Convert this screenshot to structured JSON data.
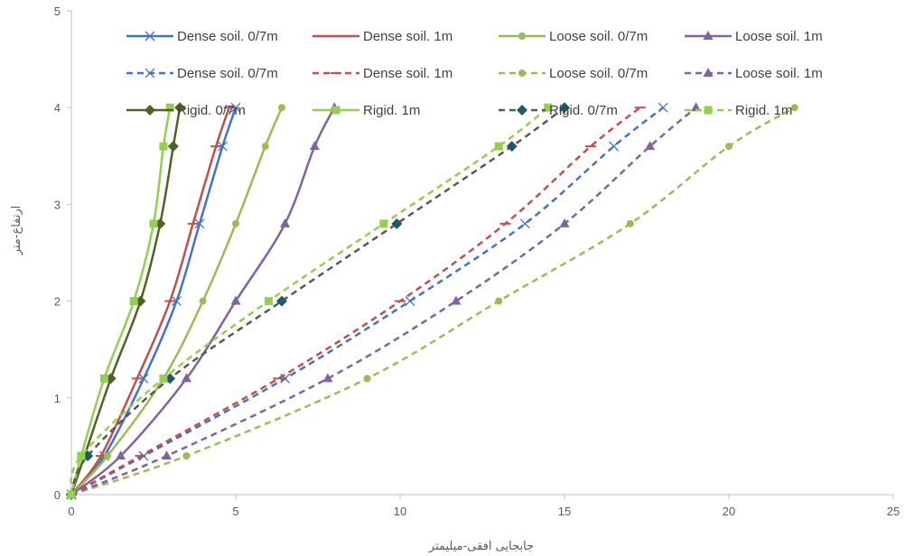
{
  "chart_data": {
    "type": "line",
    "title": "",
    "xlabel": "جابجایی افقی-میلیمتر",
    "ylabel": "ارتفاع-متر",
    "xlim": [
      0,
      25
    ],
    "ylim": [
      0,
      5
    ],
    "x_ticks": [
      0,
      5,
      10,
      15,
      20,
      25
    ],
    "y_ticks": [
      0,
      1,
      2,
      3,
      4,
      5
    ],
    "grid": false,
    "legend_position": "top",
    "legend_columns": 4,
    "series": [
      {
        "name": "Dense soil. 0/7m",
        "color": "#4472C4",
        "dash": "solid",
        "marker": "x",
        "x": [
          0,
          1,
          2.2,
          3.2,
          3.9,
          4.6,
          5.0
        ],
        "y": [
          0,
          0.4,
          1.2,
          2.0,
          2.8,
          3.6,
          4.0
        ]
      },
      {
        "name": "Dense soil. 1m",
        "color": "#C0504D",
        "dash": "solid",
        "marker": "dash",
        "x": [
          0,
          0.9,
          2.0,
          3.0,
          3.7,
          4.4,
          4.8
        ],
        "y": [
          0,
          0.4,
          1.2,
          2.0,
          2.8,
          3.6,
          4.0
        ]
      },
      {
        "name": "Loose soil. 0/7m",
        "color": "#9BBB59",
        "dash": "solid",
        "marker": "circle",
        "x": [
          0,
          1.1,
          2.8,
          4.0,
          5.0,
          5.9,
          6.4
        ],
        "y": [
          0,
          0.4,
          1.2,
          2.0,
          2.8,
          3.6,
          4.0
        ]
      },
      {
        "name": "Loose soil. 1m",
        "color": "#8064A2",
        "dash": "solid",
        "marker": "triangle",
        "x": [
          0,
          1.5,
          3.5,
          5.0,
          6.5,
          7.4,
          8.0
        ],
        "y": [
          0,
          0.4,
          1.2,
          2.0,
          2.8,
          3.6,
          4.0
        ]
      },
      {
        "name": "Dense soil. 0/7m",
        "color": "#4472C4",
        "dash": "dashed",
        "marker": "x",
        "x": [
          0,
          2.2,
          6.5,
          10.3,
          13.8,
          16.5,
          18.0
        ],
        "y": [
          0,
          0.4,
          1.2,
          2.0,
          2.8,
          3.6,
          4.0
        ]
      },
      {
        "name": "Dense soil. 1m",
        "color": "#C0504D",
        "dash": "dashed",
        "marker": "dash",
        "x": [
          0,
          2.1,
          6.3,
          10.0,
          13.2,
          15.8,
          17.3
        ],
        "y": [
          0,
          0.4,
          1.2,
          2.0,
          2.8,
          3.6,
          4.0
        ]
      },
      {
        "name": "Loose soil. 0/7m",
        "color": "#9BBB59",
        "dash": "dashed",
        "marker": "circle",
        "x": [
          0,
          3.5,
          9.0,
          13.0,
          17.0,
          20.0,
          22.0
        ],
        "y": [
          0,
          0.4,
          1.2,
          2.0,
          2.8,
          3.6,
          4.0
        ]
      },
      {
        "name": "Loose soil. 1m",
        "color": "#8064A2",
        "dash": "dashed",
        "marker": "triangle",
        "x": [
          0,
          2.9,
          7.8,
          11.7,
          15.0,
          17.6,
          19.0
        ],
        "y": [
          0,
          0.4,
          1.2,
          2.0,
          2.8,
          3.6,
          4.0
        ]
      },
      {
        "name": "Rigid. 0/7m",
        "color": "#4F6228",
        "dash": "solid",
        "marker": "diamond",
        "x": [
          0,
          0.4,
          1.2,
          2.1,
          2.7,
          3.1,
          3.3
        ],
        "y": [
          0,
          0.4,
          1.2,
          2.0,
          2.8,
          3.6,
          4.0
        ]
      },
      {
        "name": "Rigid. 1m",
        "color": "#92D050",
        "dash": "solid",
        "marker": "square",
        "x": [
          0,
          0.3,
          1.0,
          1.9,
          2.5,
          2.8,
          3.0
        ],
        "y": [
          0,
          0.4,
          1.2,
          2.0,
          2.8,
          3.6,
          4.0
        ]
      },
      {
        "name": "Rigid. 0/7m",
        "color": "#595959",
        "dash": "dashed",
        "marker": "diamond",
        "marker_color": "#215967",
        "x": [
          0,
          0.5,
          3.0,
          6.4,
          9.9,
          13.4,
          15.0
        ],
        "y": [
          0,
          0.4,
          1.2,
          2.0,
          2.8,
          3.6,
          4.0
        ]
      },
      {
        "name": "Rigid. 1m",
        "color": "#92D050",
        "dash": "dashed",
        "marker": "square",
        "x": [
          0,
          0.3,
          2.8,
          6.0,
          9.5,
          13.0,
          14.5
        ],
        "y": [
          0,
          0.4,
          1.2,
          2.0,
          2.8,
          3.6,
          4.0
        ]
      }
    ]
  }
}
